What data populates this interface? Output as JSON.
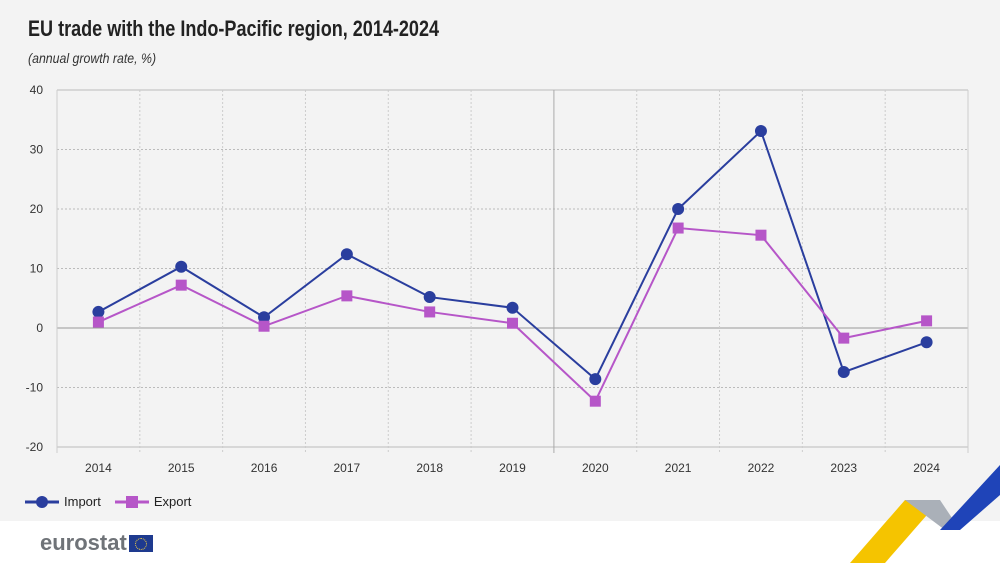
{
  "chart_data": {
    "type": "line",
    "title": "EU trade with the Indo-Pacific region, 2014-2024",
    "subtitle": "(annual growth rate, %)",
    "categories": [
      "2014",
      "2015",
      "2016",
      "2017",
      "2018",
      "2019",
      "2020",
      "2021",
      "2022",
      "2023",
      "2024"
    ],
    "ylim": [
      -20,
      40
    ],
    "yticks": [
      40,
      30,
      20,
      10,
      0,
      -10,
      -20
    ],
    "grid": true,
    "legend_position": "bottom-left",
    "series": [
      {
        "name": "Import",
        "color": "#2a3e9e",
        "marker": "circle",
        "values": [
          2.7,
          10.3,
          1.8,
          12.4,
          5.2,
          3.4,
          -8.6,
          20.0,
          33.1,
          -7.4,
          -2.4
        ]
      },
      {
        "name": "Export",
        "color": "#b656c8",
        "marker": "square",
        "values": [
          1.0,
          7.2,
          0.3,
          5.4,
          2.7,
          0.8,
          -12.3,
          16.8,
          15.6,
          -1.7,
          1.2
        ]
      }
    ]
  },
  "footer": {
    "logo": "eurostat"
  }
}
